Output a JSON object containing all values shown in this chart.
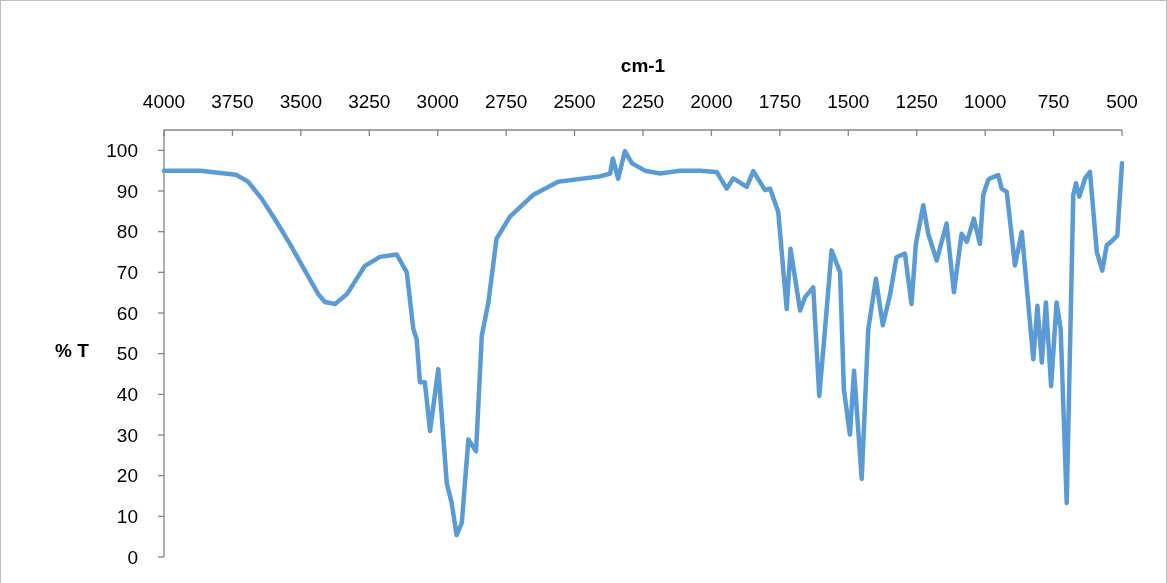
{
  "chart_data": {
    "type": "line",
    "xlabel": "cm-1",
    "ylabel": "% T",
    "xlim": [
      4000,
      500
    ],
    "xticks": [
      4000,
      3750,
      3500,
      3250,
      3000,
      2750,
      2500,
      2250,
      2000,
      1750,
      1500,
      1250,
      1000,
      750,
      500
    ],
    "ylim": [
      0,
      105
    ],
    "yticks": [
      0,
      10,
      20,
      30,
      40,
      50,
      60,
      70,
      80,
      90,
      100
    ],
    "grid": false,
    "marker": "none",
    "line_style": "solid",
    "series": [
      {
        "color": "#5b9bd5",
        "x": [
          4000,
          3868,
          3737,
          3693,
          3642,
          3594,
          3540,
          3485,
          3437,
          3412,
          3375,
          3331,
          3266,
          3211,
          3150,
          3113,
          3089,
          3077,
          3065,
          3047,
          3028,
          2998,
          2967,
          2949,
          2931,
          2912,
          2888,
          2860,
          2839,
          2815,
          2785,
          2736,
          2652,
          2560,
          2407,
          2370,
          2360,
          2341,
          2316,
          2290,
          2243,
          2188,
          2115,
          2042,
          1981,
          1944,
          1920,
          1871,
          1847,
          1804,
          1786,
          1756,
          1725,
          1711,
          1676,
          1658,
          1628,
          1606,
          1585,
          1561,
          1530,
          1516,
          1494,
          1479,
          1451,
          1427,
          1399,
          1374,
          1348,
          1324,
          1293,
          1269,
          1253,
          1226,
          1208,
          1177,
          1141,
          1114,
          1086,
          1067,
          1041,
          1019,
          1007,
          989,
          982,
          952,
          940,
          921,
          891,
          866,
          824,
          809,
          793,
          778,
          759,
          739,
          724,
          702,
          678,
          668,
          656,
          635,
          617,
          592,
          572,
          556,
          534,
          517,
          500
        ],
        "values": [
          95,
          95,
          94,
          92.3,
          88,
          83,
          77,
          70.4,
          64.7,
          62.7,
          62.2,
          64.7,
          71.6,
          73.8,
          74.4,
          70,
          56,
          53.6,
          43,
          43,
          31,
          46.2,
          18.2,
          13.3,
          5.4,
          8.4,
          28.9,
          26,
          54.4,
          62.6,
          78.3,
          83.7,
          89,
          92.3,
          93.6,
          94.3,
          98,
          93,
          99.8,
          96.8,
          95,
          94.3,
          95,
          95,
          94.7,
          90.6,
          93.1,
          91,
          94.9,
          90.2,
          90.6,
          84.9,
          61,
          75.8,
          60.6,
          63.9,
          66.3,
          39.6,
          56,
          75.4,
          70,
          41.2,
          30.1,
          45.8,
          19.2,
          56,
          68.4,
          57,
          64.3,
          73.7,
          74.6,
          62.2,
          77,
          86.5,
          79.5,
          72.9,
          82,
          65.1,
          79.5,
          77.5,
          83.2,
          77,
          89,
          92.7,
          93.1,
          93.9,
          90.6,
          89.8,
          71.7,
          79.9,
          48.6,
          61.8,
          47.8,
          62.6,
          42,
          62.6,
          56,
          13.3,
          89,
          91.9,
          88.6,
          93.1,
          94.7,
          75,
          70.4,
          76.6,
          77.9,
          79.1,
          96.8
        ]
      }
    ]
  }
}
